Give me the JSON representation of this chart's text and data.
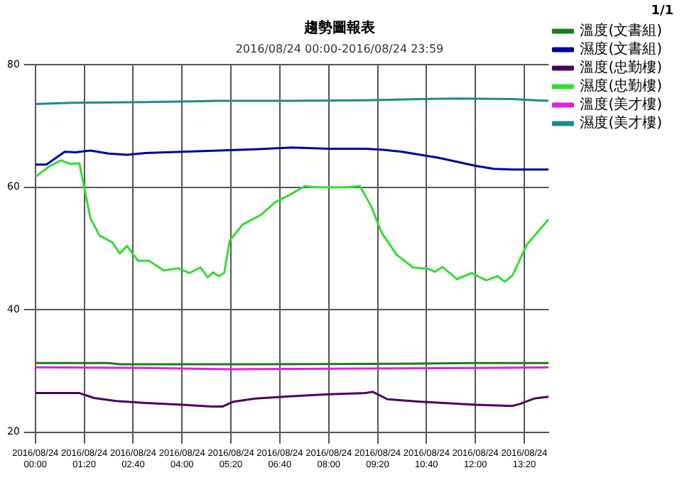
{
  "chart_data": {
    "type": "line",
    "title": "趨勢圖報表",
    "subtitle": "2016/08/24 00:00-2016/08/24 23:59",
    "annotations": [
      "1/1"
    ],
    "xlim": [
      "2016-08-24T00:00",
      "2016-08-24T14:00"
    ],
    "xticks": [
      {
        "value": "2016-08-24T00:00",
        "label": "2016/08/24 00:00"
      },
      {
        "value": "2016-08-24T01:20",
        "label": "2016/08/24 01:20"
      },
      {
        "value": "2016-08-24T02:40",
        "label": "2016/08/24 02:40"
      },
      {
        "value": "2016-08-24T04:00",
        "label": "2016/08/24 04:00"
      },
      {
        "value": "2016-08-24T05:20",
        "label": "2016/08/24 05:20"
      },
      {
        "value": "2016-08-24T06:40",
        "label": "2016/08/24 06:40"
      },
      {
        "value": "2016-08-24T08:00",
        "label": "2016/08/24 08:00"
      },
      {
        "value": "2016-08-24T09:20",
        "label": "2016/08/24 09:20"
      },
      {
        "value": "2016-08-24T10:40",
        "label": "2016/08/24 10:40"
      },
      {
        "value": "2016-08-24T12:00",
        "label": "2016/08/24 12:00"
      },
      {
        "value": "2016-08-24T13:20",
        "label": "2016/08/24 13:20"
      }
    ],
    "ylim": [
      20,
      80
    ],
    "yticks": [
      20,
      40,
      60,
      80
    ],
    "grid": true,
    "legend": "right",
    "marker": "none",
    "line_style": "solid",
    "series": [
      {
        "name": "溫度(文書組)",
        "color": "#1f7a1f",
        "x": [
          "2016-08-24T00:00",
          "2016-08-24T02:00",
          "2016-08-24T02:18",
          "2016-08-24T06:00",
          "2016-08-24T10:00",
          "2016-08-24T12:00",
          "2016-08-24T14:00"
        ],
        "values": [
          31.3,
          31.3,
          31.1,
          31.1,
          31.2,
          31.3,
          31.3
        ]
      },
      {
        "name": "濕度(文書組)",
        "color": "#0000a0",
        "x": [
          "2016-08-24T00:00",
          "2016-08-24T00:18",
          "2016-08-24T00:48",
          "2016-08-24T01:06",
          "2016-08-24T01:30",
          "2016-08-24T02:00",
          "2016-08-24T02:30",
          "2016-08-24T03:00",
          "2016-08-24T04:00",
          "2016-08-24T05:00",
          "2016-08-24T06:00",
          "2016-08-24T07:00",
          "2016-08-24T08:00",
          "2016-08-24T09:00",
          "2016-08-24T09:30",
          "2016-08-24T10:00",
          "2016-08-24T11:00",
          "2016-08-24T12:00",
          "2016-08-24T12:30",
          "2016-08-24T13:00",
          "2016-08-24T14:00"
        ],
        "values": [
          63.7,
          63.7,
          65.8,
          65.7,
          66,
          65.5,
          65.3,
          65.6,
          65.8,
          66,
          66.2,
          66.5,
          66.3,
          66.3,
          66.1,
          65.8,
          64.8,
          63.5,
          63,
          62.9,
          62.9
        ]
      },
      {
        "name": "溫度(忠勤樓)",
        "color": "#4b0060",
        "x": [
          "2016-08-24T00:00",
          "2016-08-24T00:36",
          "2016-08-24T01:12",
          "2016-08-24T01:36",
          "2016-08-24T02:12",
          "2016-08-24T03:00",
          "2016-08-24T04:00",
          "2016-08-24T04:48",
          "2016-08-24T05:06",
          "2016-08-24T05:24",
          "2016-08-24T06:00",
          "2016-08-24T07:00",
          "2016-08-24T08:00",
          "2016-08-24T09:00",
          "2016-08-24T09:12",
          "2016-08-24T09:36",
          "2016-08-24T10:30",
          "2016-08-24T12:00",
          "2016-08-24T13:00",
          "2016-08-24T13:12",
          "2016-08-24T13:36",
          "2016-08-24T14:00"
        ],
        "values": [
          26.4,
          26.4,
          26.4,
          25.6,
          25.1,
          24.8,
          24.5,
          24.2,
          24.2,
          25,
          25.5,
          25.9,
          26.2,
          26.4,
          26.6,
          25.4,
          25,
          24.5,
          24.3,
          24.6,
          25.5,
          25.8
        ]
      },
      {
        "name": "濕度(忠勤樓)",
        "color": "#33dd33",
        "x": [
          "2016-08-24T00:00",
          "2016-08-24T00:24",
          "2016-08-24T00:42",
          "2016-08-24T00:57",
          "2016-08-24T01:12",
          "2016-08-24T01:30",
          "2016-08-24T01:45",
          "2016-08-24T02:06",
          "2016-08-24T02:18",
          "2016-08-24T02:30",
          "2016-08-24T02:48",
          "2016-08-24T03:06",
          "2016-08-24T03:30",
          "2016-08-24T03:54",
          "2016-08-24T04:12",
          "2016-08-24T04:30",
          "2016-08-24T04:42",
          "2016-08-24T04:51",
          "2016-08-24T05:00",
          "2016-08-24T05:09",
          "2016-08-24T05:18",
          "2016-08-24T05:39",
          "2016-08-24T06:09",
          "2016-08-24T06:33",
          "2016-08-24T06:57",
          "2016-08-24T07:21",
          "2016-08-24T07:36",
          "2016-08-24T08:00",
          "2016-08-24T08:30",
          "2016-08-24T08:51",
          "2016-08-24T09:09",
          "2016-08-24T09:27",
          "2016-08-24T09:51",
          "2016-08-24T10:18",
          "2016-08-24T10:42",
          "2016-08-24T10:54",
          "2016-08-24T11:06",
          "2016-08-24T11:30",
          "2016-08-24T11:54",
          "2016-08-24T12:18",
          "2016-08-24T12:36",
          "2016-08-24T12:48",
          "2016-08-24T13:00",
          "2016-08-24T13:06",
          "2016-08-24T13:24",
          "2016-08-24T14:00"
        ],
        "values": [
          61.7,
          63.5,
          64.4,
          63.8,
          63.9,
          55,
          52.1,
          51,
          49.2,
          50.4,
          48,
          48,
          46.4,
          46.8,
          46,
          46.9,
          45.3,
          46.1,
          45.5,
          46,
          51.3,
          53.9,
          55.5,
          57.6,
          58.8,
          60.2,
          60,
          60,
          60,
          60.2,
          57,
          52.5,
          49,
          46.9,
          46.7,
          46.2,
          47,
          45,
          46,
          44.8,
          45.5,
          44.6,
          45.5,
          46.7,
          50.6,
          54.8
        ]
      },
      {
        "name": "溫度(美才樓)",
        "color": "#e020e0",
        "x": [
          "2016-08-24T00:00",
          "2016-08-24T03:00",
          "2016-08-24T05:18",
          "2016-08-24T09:00",
          "2016-08-24T12:00",
          "2016-08-24T14:00"
        ],
        "values": [
          30.6,
          30.5,
          30.3,
          30.4,
          30.5,
          30.6
        ]
      },
      {
        "name": "濕度(美才樓)",
        "color": "#1e8a8a",
        "x": [
          "2016-08-24T00:00",
          "2016-08-24T01:00",
          "2016-08-24T03:00",
          "2016-08-24T05:00",
          "2016-08-24T07:00",
          "2016-08-24T09:00",
          "2016-08-24T10:30",
          "2016-08-24T11:30",
          "2016-08-24T13:00",
          "2016-08-24T14:00"
        ],
        "values": [
          73.6,
          73.8,
          73.9,
          74.1,
          74.1,
          74.2,
          74.4,
          74.5,
          74.4,
          74.1
        ]
      }
    ]
  }
}
